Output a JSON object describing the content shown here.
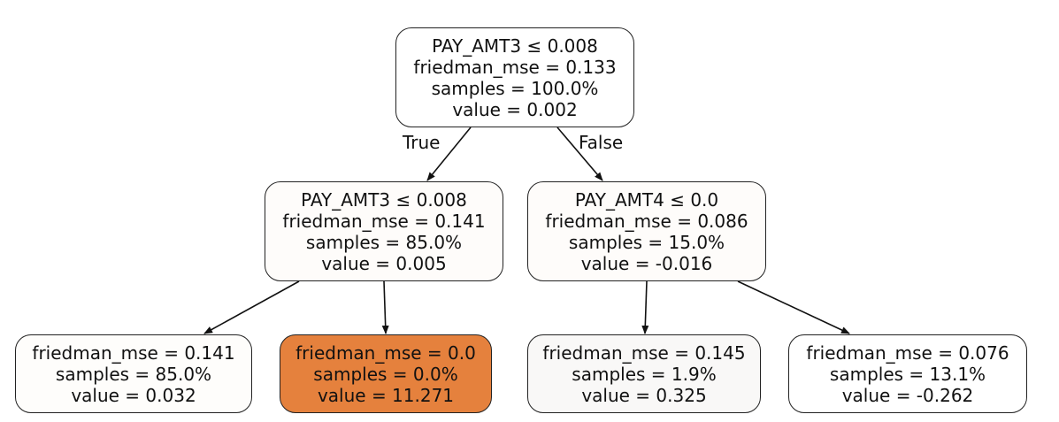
{
  "nodes": [
    {
      "id": "n0",
      "lines": [
        "PAY_AMT3 ≤ 0.008",
        "friedman_mse = 0.133",
        "samples = 100.0%",
        "value = 0.002"
      ],
      "fill": "#ffffff"
    },
    {
      "id": "n1",
      "lines": [
        "PAY_AMT3 ≤ 0.008",
        "friedman_mse = 0.141",
        "samples = 85.0%",
        "value = 0.005"
      ],
      "fill": "#fefcfa"
    },
    {
      "id": "n2",
      "lines": [
        "PAY_AMT4 ≤ 0.0",
        "friedman_mse = 0.086",
        "samples = 15.0%",
        "value = -0.016"
      ],
      "fill": "#fefcfa"
    },
    {
      "id": "n3",
      "lines": [
        "friedman_mse = 0.141",
        "samples = 85.0%",
        "value = 0.032"
      ],
      "fill": "#fefdfb"
    },
    {
      "id": "n4",
      "lines": [
        "friedman_mse = 0.0",
        "samples = 0.0%",
        "value = 11.271"
      ],
      "fill": "#e5813d"
    },
    {
      "id": "n5",
      "lines": [
        "friedman_mse = 0.145",
        "samples = 1.9%",
        "value = 0.325"
      ],
      "fill": "#f9f8f7"
    },
    {
      "id": "n6",
      "lines": [
        "friedman_mse = 0.076",
        "samples = 13.1%",
        "value = -0.262"
      ],
      "fill": "#ffffff"
    }
  ],
  "edges": [
    {
      "from": "n0",
      "to": "n1",
      "label": "True"
    },
    {
      "from": "n0",
      "to": "n2",
      "label": "False"
    },
    {
      "from": "n1",
      "to": "n3"
    },
    {
      "from": "n1",
      "to": "n4"
    },
    {
      "from": "n2",
      "to": "n5"
    },
    {
      "from": "n2",
      "to": "n6"
    }
  ]
}
